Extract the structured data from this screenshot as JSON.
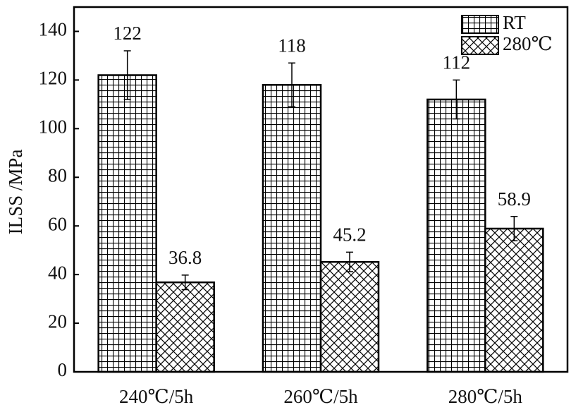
{
  "chart_data": {
    "type": "bar",
    "y_label": "ILSS /MPa",
    "categories": [
      "240℃/5h",
      "260℃/5h",
      "280℃/5h"
    ],
    "series": [
      {
        "name": "RT",
        "color": "#000000",
        "pattern": "grid",
        "values": [
          122,
          118,
          112
        ],
        "errors": [
          10,
          9,
          8
        ]
      },
      {
        "name": "280℃",
        "color": "#000000",
        "pattern": "crosshatch",
        "values": [
          36.8,
          45.2,
          58.9
        ],
        "errors": [
          3,
          4,
          5
        ]
      }
    ],
    "ylim": [
      0,
      150
    ],
    "yticks": [
      0,
      20,
      40,
      60,
      80,
      100,
      120,
      140
    ],
    "legend": "top-right",
    "grid": false
  }
}
